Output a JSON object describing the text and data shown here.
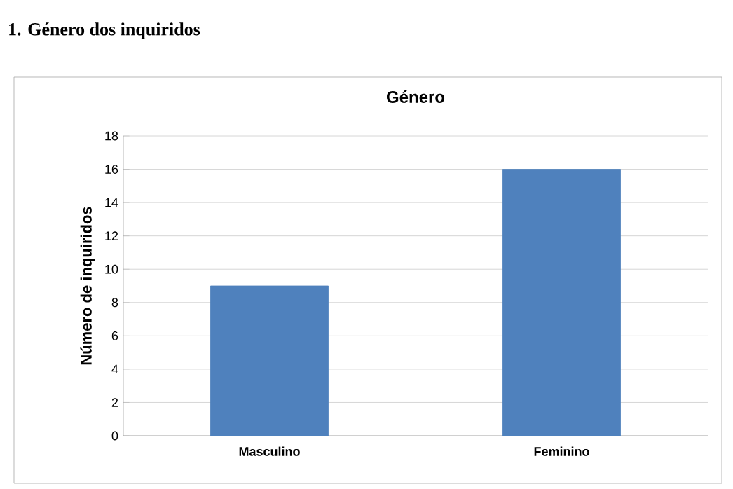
{
  "chart_data": {
    "type": "bar",
    "title": "Género",
    "ylabel": "Número de inquiridos",
    "categories": [
      "Masculino",
      "Feminino"
    ],
    "values": [
      9,
      16
    ],
    "color": "#4f81bd",
    "ylim": [
      0,
      18
    ],
    "yticks": [
      0,
      2,
      4,
      6,
      8,
      10,
      12,
      14,
      16,
      18
    ],
    "grid": "y",
    "annotations": [
      "1. Género dos inquiridos"
    ]
  }
}
